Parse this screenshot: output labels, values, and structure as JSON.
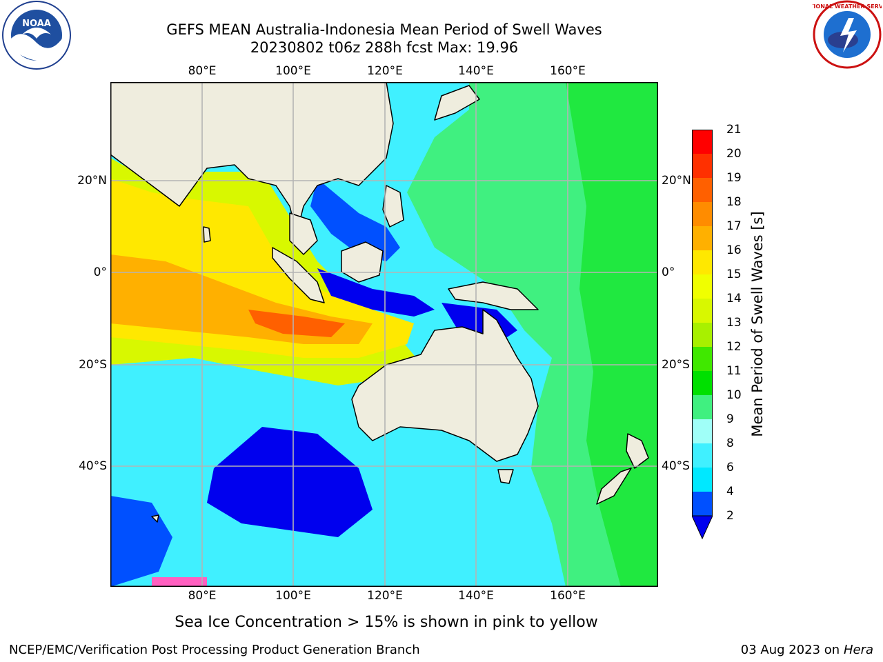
{
  "title_line1": "GEFS MEAN Australia-Indonesia Mean Period of Swell Waves",
  "title_line2": "20230802 t06z 288h fcst   Max: 19.96",
  "lon_labels": [
    "80°E",
    "100°E",
    "120°E",
    "140°E",
    "160°E"
  ],
  "lat_labels": [
    "20°N",
    "0°",
    "20°S",
    "40°S"
  ],
  "colorbar": {
    "title": "Mean Period of Swell Waves [s]",
    "ticks": [
      "2",
      "4",
      "6",
      "8",
      "9",
      "10",
      "11",
      "12",
      "13",
      "14",
      "15",
      "16",
      "17",
      "18",
      "19",
      "20",
      "21"
    ],
    "colors": [
      "#0050ff",
      "#00e8ff",
      "#40f0ff",
      "#a0fff8",
      "#40f080",
      "#00e000",
      "#40e800",
      "#a8f000",
      "#d8f800",
      "#f0ff00",
      "#ffe800",
      "#ffb000",
      "#ff8c00",
      "#ff6000",
      "#ff3000",
      "#ff0000"
    ],
    "extend_color": "#0000ee"
  },
  "note": "Sea Ice Concentration > 15% is shown in pink to yellow",
  "footer_left": "NCEP/EMC/Verification Post Processing Product Generation Branch",
  "footer_date": "03 Aug 2023 on",
  "footer_host": "Hera",
  "logos": {
    "noaa_text": "NOAA",
    "nws_text": "NATIONAL WEATHER SERVICE"
  }
}
